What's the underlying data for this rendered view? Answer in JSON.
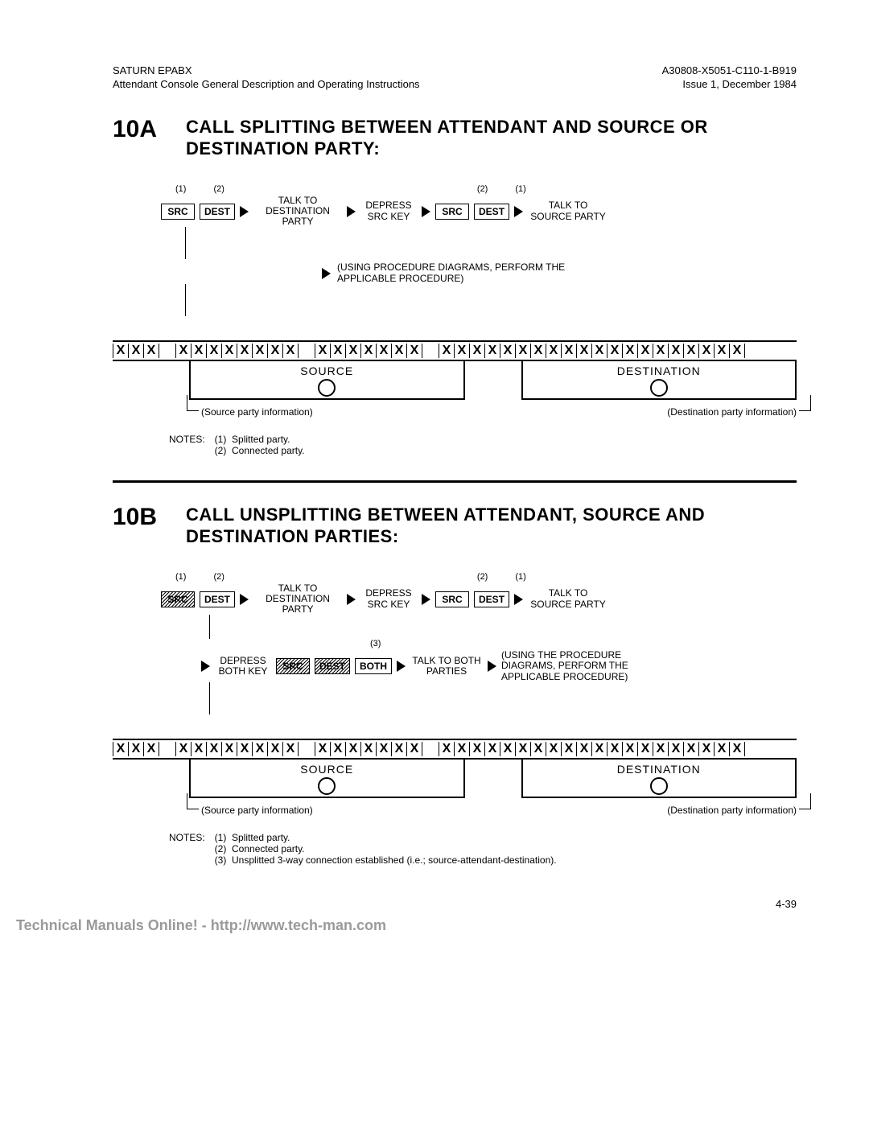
{
  "header": {
    "left_line1": "SATURN EPABX",
    "left_line2": "Attendant Console General Description and Operating Instructions",
    "right_line1": "A30808-X5051-C110-1-B919",
    "right_line2": "Issue 1, December 1984"
  },
  "sectionA": {
    "num": "10A",
    "title": "CALL SPLITTING BETWEEN ATTENDANT AND SOURCE OR DESTINATION PARTY:",
    "annot": {
      "a1": "(1)",
      "a2": "(2)",
      "b1": "(2)",
      "b2": "(1)"
    },
    "flow": {
      "src": "SRC",
      "dest": "DEST",
      "talk_dest": "TALK TO DESTINATION PARTY",
      "depress_src": "DEPRESS SRC KEY",
      "src2": "SRC",
      "dest2": "DEST",
      "talk_src": "TALK TO SOURCE PARTY"
    },
    "mid_note": "(USING PROCEDURE DIAGRAMS, PERFORM THE APPLICABLE PROCEDURE)",
    "display": {
      "x": "X",
      "group_sizes": [
        3,
        8,
        7,
        20
      ],
      "source_label": "SOURCE",
      "dest_label": "DESTINATION",
      "src_info": "(Source party information)",
      "dest_info": "(Destination party information)"
    },
    "notes_label": "NOTES:",
    "notes": [
      "Splitted party.",
      "Connected party."
    ]
  },
  "sectionB": {
    "num": "10B",
    "title": "CALL UNSPLITTING BETWEEN ATTENDANT, SOURCE AND DESTINATION PARTIES:",
    "annot": {
      "a1": "(1)",
      "a2": "(2)",
      "b1": "(2)",
      "b2": "(1)",
      "c3": "(3)"
    },
    "flow1": {
      "src": "SRC",
      "dest": "DEST",
      "talk_dest": "TALK TO DESTINATION PARTY",
      "depress_src": "DEPRESS SRC KEY",
      "src2": "SRC",
      "dest2": "DEST",
      "talk_src": "TALK TO SOURCE PARTY"
    },
    "flow2": {
      "depress_both": "DEPRESS BOTH KEY",
      "src": "SRC",
      "dest": "DEST",
      "both": "BOTH",
      "talk_both": "TALK TO BOTH PARTIES",
      "using": "(USING THE PROCEDURE DIAGRAMS, PERFORM THE APPLICABLE PROCEDURE)"
    },
    "display": {
      "x": "X",
      "group_sizes": [
        3,
        8,
        7,
        20
      ],
      "source_label": "SOURCE",
      "dest_label": "DESTINATION",
      "src_info": "(Source party information)",
      "dest_info": "(Destination party information)"
    },
    "notes_label": "NOTES:",
    "notes": [
      "Splitted party.",
      "Connected party.",
      "Unsplitted 3-way connection established (i.e.; source-attendant-destination)."
    ]
  },
  "page_num": "4-39",
  "footer": "Technical Manuals Online! - http://www.tech-man.com"
}
